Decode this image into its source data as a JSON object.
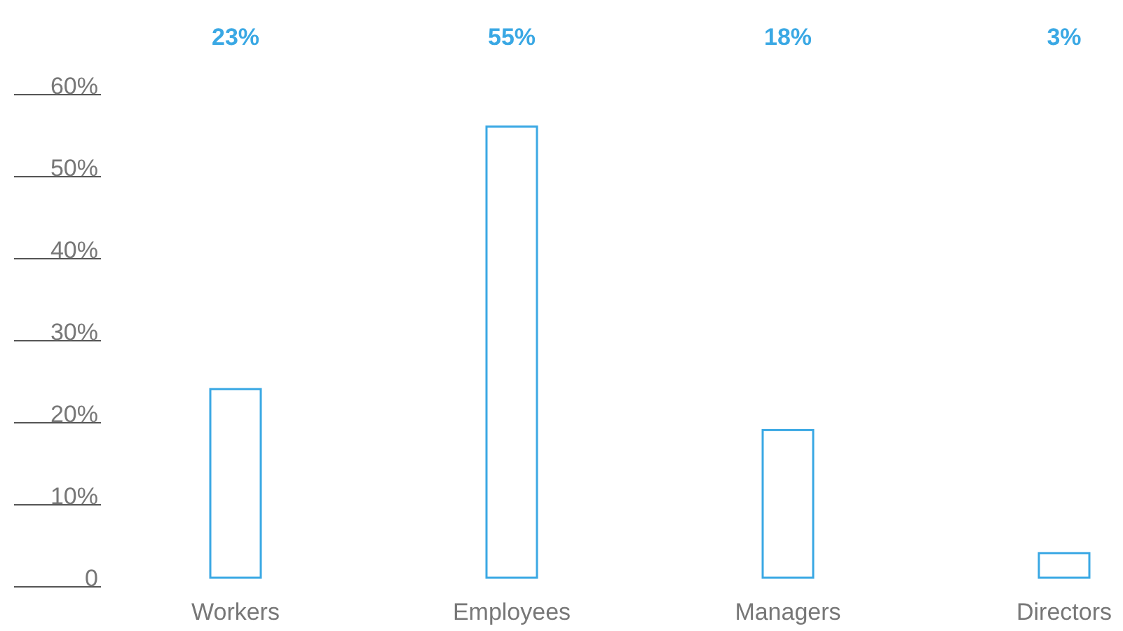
{
  "chart_data": {
    "type": "bar",
    "categories": [
      "Workers",
      "Employees",
      "Managers",
      "Directors"
    ],
    "values": [
      23,
      55,
      18,
      3
    ],
    "color": "#3aa8e4",
    "value_labels": [
      "23%",
      "55%",
      "18%",
      "3%"
    ],
    "ylim": [
      0,
      60
    ],
    "yticks": [
      {
        "value": 0,
        "label": "0"
      },
      {
        "value": 10,
        "label": "10%"
      },
      {
        "value": 20,
        "label": "20%"
      },
      {
        "value": 30,
        "label": "30%"
      },
      {
        "value": 40,
        "label": "40%"
      },
      {
        "value": 50,
        "label": "50%"
      },
      {
        "value": 60,
        "label": "60%"
      }
    ]
  }
}
